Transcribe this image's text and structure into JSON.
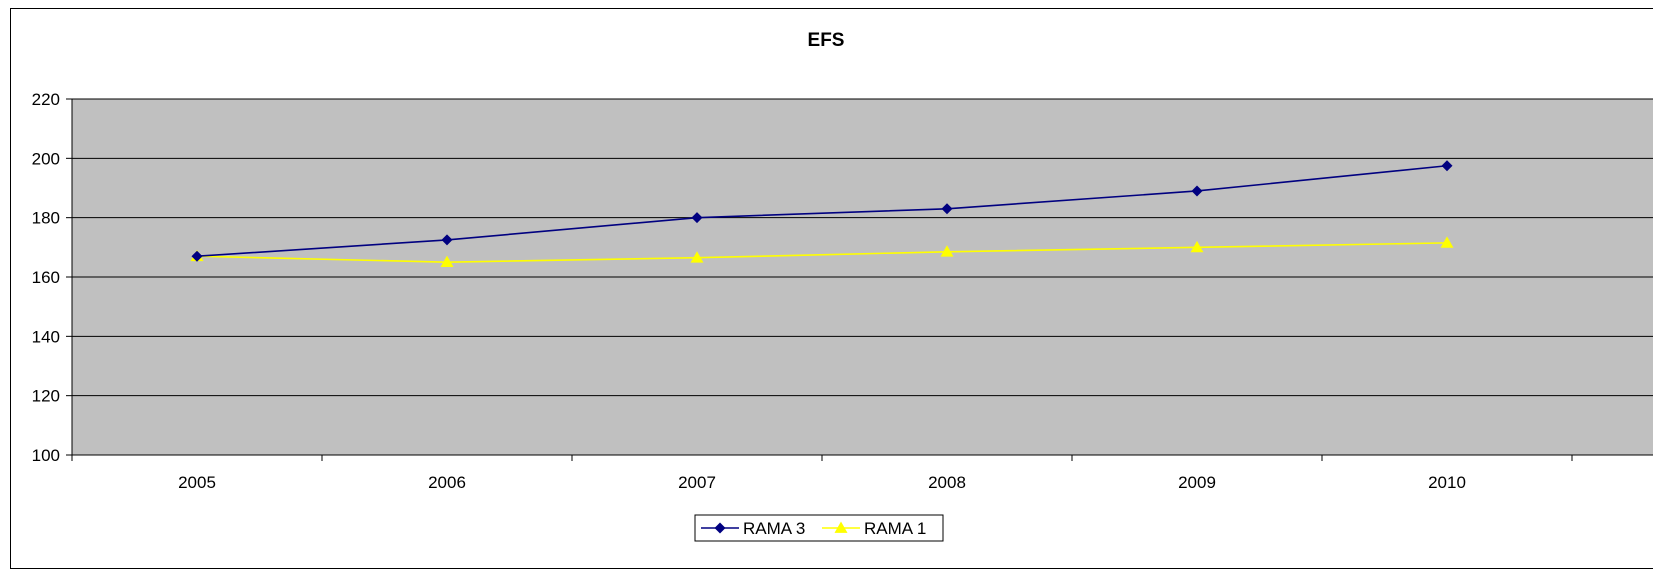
{
  "chart_data": {
    "type": "line",
    "title": "EFS",
    "xlabel": "",
    "ylabel": "",
    "categories": [
      "2005",
      "2006",
      "2007",
      "2008",
      "2009",
      "2010"
    ],
    "ylim": [
      100,
      220
    ],
    "yticks": [
      100,
      120,
      140,
      160,
      180,
      200,
      220
    ],
    "grid": true,
    "legend_position": "bottom",
    "plot_background": "#c0c0c0",
    "series": [
      {
        "name": "RAMA 3",
        "color": "#000080",
        "marker": "diamond",
        "values": [
          167,
          172.5,
          180,
          183,
          189,
          197.5
        ]
      },
      {
        "name": "RAMA 1",
        "color": "#ffff00",
        "marker": "triangle",
        "values": [
          167,
          165,
          166.5,
          168.5,
          170,
          171.5
        ]
      }
    ]
  }
}
